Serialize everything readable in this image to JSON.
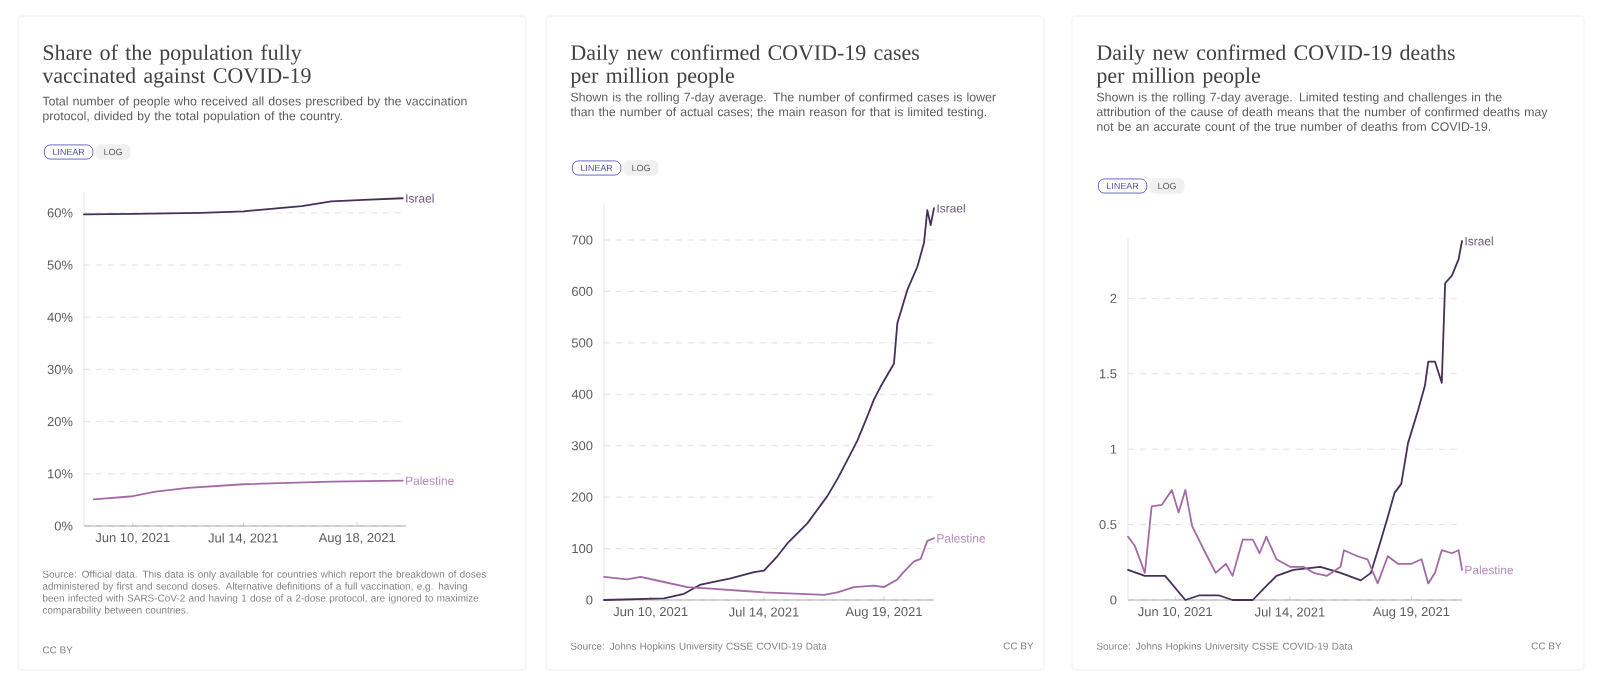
{
  "chart_data": [
    {
      "type": "line",
      "title": "Share of the population fully vaccinated against COVID-19",
      "subtitle": "Total number of people who received all doses prescribed by the vaccination protocol, divided by the total population of the country.",
      "series": [
        {
          "name": "Israel",
          "color": "#44305a",
          "x": [
            "2021-05-26",
            "2021-06-10",
            "2021-07-01",
            "2021-07-14",
            "2021-08-01",
            "2021-08-10",
            "2021-08-20",
            "2021-09-01"
          ],
          "values": [
            59.7,
            59.8,
            60.0,
            60.3,
            61.3,
            62.2,
            62.5,
            62.8
          ]
        },
        {
          "name": "Palestine",
          "color": "#a46aa8",
          "x": [
            "2021-05-29",
            "2021-06-10",
            "2021-06-17",
            "2021-06-27",
            "2021-07-14",
            "2021-08-10",
            "2021-09-01"
          ],
          "values": [
            5.1,
            5.7,
            6.6,
            7.3,
            8.0,
            8.5,
            8.7
          ]
        }
      ],
      "xlim": [
        "2021-05-26",
        "2021-09-02"
      ],
      "xticks": [
        {
          "value": "2021-06-10",
          "label": "Jun 10, 2021"
        },
        {
          "value": "2021-07-14",
          "label": "Jul 14, 2021"
        },
        {
          "value": "2021-08-18",
          "label": "Aug 18, 2021"
        }
      ],
      "ylim": [
        0,
        64
      ],
      "yticks": [
        {
          "value": 0,
          "label": "0%"
        },
        {
          "value": 10,
          "label": "10%"
        },
        {
          "value": 20,
          "label": "20%"
        },
        {
          "value": 30,
          "label": "30%"
        },
        {
          "value": 40,
          "label": "40%"
        },
        {
          "value": 50,
          "label": "50%"
        },
        {
          "value": 60,
          "label": "60%"
        }
      ],
      "grid": "y",
      "annotations": [
        "LINEAR",
        "LOG",
        "Source: Official data. This data is only available for countries which report the breakdown of doses administered by first and second doses. Alternative definitions of a full vaccination, e.g. having been infected with SARS-CoV-2 and having 1 dose of a 2-dose protocol, are ignored to maximize comparability between countries.",
        "CC BY"
      ]
    },
    {
      "type": "line",
      "title": "Daily new confirmed COVID-19 cases per million people",
      "subtitle": "Shown is the rolling 7-day average. The number of confirmed cases is lower than the number of actual cases; the main reason for that is limited testing.",
      "series": [
        {
          "name": "Israel",
          "color": "#44305a",
          "x": [
            "2021-05-27",
            "2021-06-14",
            "2021-06-20",
            "2021-06-25",
            "2021-07-04",
            "2021-07-11",
            "2021-07-14",
            "2021-07-18",
            "2021-07-21",
            "2021-07-27",
            "2021-08-02",
            "2021-08-05",
            "2021-08-08",
            "2021-08-11",
            "2021-08-14",
            "2021-08-16",
            "2021-08-18",
            "2021-08-22",
            "2021-08-23",
            "2021-08-26",
            "2021-08-29",
            "2021-08-31",
            "2021-09-01",
            "2021-09-02",
            "2021-09-03"
          ],
          "values": [
            0,
            3,
            12,
            30,
            42,
            54,
            57,
            85,
            110,
            149,
            202,
            235,
            272,
            310,
            357,
            390,
            415,
            460,
            538,
            603,
            648,
            694,
            758,
            729,
            762
          ]
        },
        {
          "name": "Palestine",
          "color": "#a46aa8",
          "x": [
            "2021-05-27",
            "2021-06-03",
            "2021-06-07",
            "2021-06-14",
            "2021-06-21",
            "2021-06-28",
            "2021-07-07",
            "2021-07-14",
            "2021-07-25",
            "2021-08-01",
            "2021-08-05",
            "2021-08-10",
            "2021-08-16",
            "2021-08-19",
            "2021-08-23",
            "2021-08-25",
            "2021-08-28",
            "2021-08-30",
            "2021-09-01",
            "2021-09-03"
          ],
          "values": [
            45,
            40,
            45,
            35,
            25,
            22,
            18,
            15,
            12,
            10,
            15,
            25,
            28,
            25,
            40,
            55,
            75,
            80,
            115,
            120
          ]
        }
      ],
      "xlim": [
        "2021-05-27",
        "2021-09-03"
      ],
      "xticks": [
        {
          "value": "2021-06-10",
          "label": "Jun 10, 2021"
        },
        {
          "value": "2021-07-14",
          "label": "Jul 14, 2021"
        },
        {
          "value": "2021-08-19",
          "label": "Aug 19, 2021"
        }
      ],
      "ylim": [
        0,
        770
      ],
      "yticks": [
        0,
        100,
        200,
        300,
        400,
        500,
        600,
        700
      ],
      "grid": "y",
      "annotations": [
        "LINEAR",
        "LOG",
        "Source: Johns Hopkins University CSSE COVID-19 Data",
        "CC BY"
      ]
    },
    {
      "type": "line",
      "title": "Daily new confirmed COVID-19 deaths per million people",
      "subtitle": "Shown is the rolling 7-day average. Limited testing and challenges in the attribution of the cause of death means that the number of confirmed deaths may not be an accurate count of the true number of deaths from COVID-19.",
      "series": [
        {
          "name": "Israel",
          "color": "#44305a",
          "x": [
            "2021-05-27",
            "2021-06-01",
            "2021-06-07",
            "2021-06-13",
            "2021-06-17",
            "2021-06-23",
            "2021-06-27",
            "2021-07-03",
            "2021-07-06",
            "2021-07-10",
            "2021-07-15",
            "2021-07-23",
            "2021-07-29",
            "2021-08-04",
            "2021-08-07",
            "2021-08-10",
            "2021-08-12",
            "2021-08-14",
            "2021-08-16",
            "2021-08-18",
            "2021-08-21",
            "2021-08-23",
            "2021-08-24",
            "2021-08-26",
            "2021-08-28",
            "2021-08-29",
            "2021-08-31",
            "2021-09-02",
            "2021-09-03"
          ],
          "values": [
            0.2,
            0.16,
            0.16,
            0,
            0.03,
            0.03,
            0,
            0,
            0.07,
            0.16,
            0.2,
            0.22,
            0.18,
            0.13,
            0.18,
            0.4,
            0.55,
            0.71,
            0.77,
            1.04,
            1.26,
            1.42,
            1.58,
            1.58,
            1.44,
            2.1,
            2.15,
            2.26,
            2.38
          ]
        },
        {
          "name": "Palestine",
          "color": "#a46aa8",
          "x": [
            "2021-05-27",
            "2021-05-29",
            "2021-06-01",
            "2021-06-03",
            "2021-06-06",
            "2021-06-09",
            "2021-06-11",
            "2021-06-13",
            "2021-06-15",
            "2021-06-19",
            "2021-06-22",
            "2021-06-25",
            "2021-06-27",
            "2021-06-30",
            "2021-07-03",
            "2021-07-05",
            "2021-07-07",
            "2021-07-10",
            "2021-07-14",
            "2021-07-18",
            "2021-07-21",
            "2021-07-25",
            "2021-07-29",
            "2021-07-30",
            "2021-08-03",
            "2021-08-06",
            "2021-08-09",
            "2021-08-12",
            "2021-08-15",
            "2021-08-19",
            "2021-08-22",
            "2021-08-24",
            "2021-08-26",
            "2021-08-28",
            "2021-08-31",
            "2021-09-02",
            "2021-09-03"
          ],
          "values": [
            0.42,
            0.36,
            0.18,
            0.62,
            0.63,
            0.73,
            0.58,
            0.73,
            0.49,
            0.31,
            0.18,
            0.24,
            0.16,
            0.4,
            0.4,
            0.31,
            0.42,
            0.27,
            0.22,
            0.22,
            0.18,
            0.16,
            0.22,
            0.33,
            0.29,
            0.27,
            0.11,
            0.29,
            0.24,
            0.24,
            0.27,
            0.11,
            0.18,
            0.33,
            0.31,
            0.33,
            0.2
          ]
        }
      ],
      "xlim": [
        "2021-05-27",
        "2021-09-03"
      ],
      "xticks": [
        {
          "value": "2021-06-10",
          "label": "Jun 10, 2021"
        },
        {
          "value": "2021-07-14",
          "label": "Jul 14, 2021"
        },
        {
          "value": "2021-08-19",
          "label": "Aug 19, 2021"
        }
      ],
      "ylim": [
        0,
        2.4
      ],
      "yticks": [
        0,
        0.5,
        1,
        1.5,
        2
      ],
      "grid": "y",
      "annotations": [
        "LINEAR",
        "LOG",
        "Source: Johns Hopkins University CSSE COVID-19 Data",
        "CC BY"
      ]
    }
  ]
}
